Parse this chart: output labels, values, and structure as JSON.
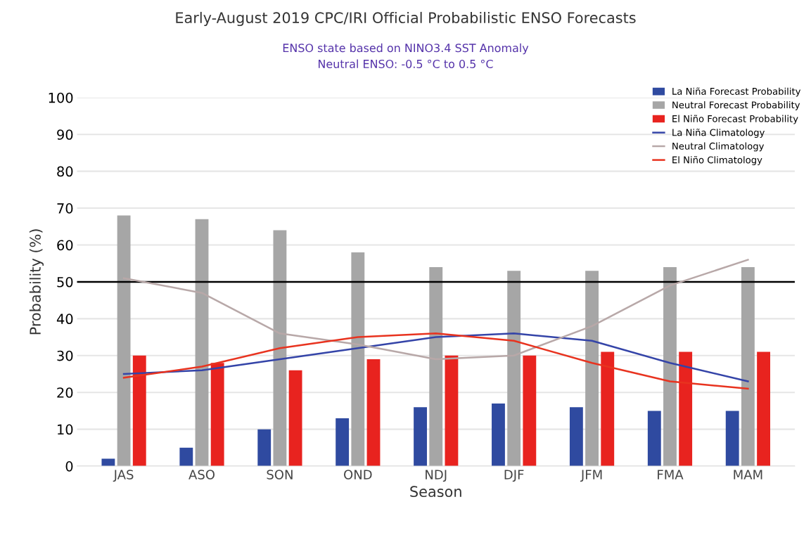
{
  "chart_data": {
    "type": "bar",
    "title": "Early-August 2019 CPC/IRI Official Probabilistic ENSO Forecasts",
    "subtitle": "ENSO state based on NINO3.4 SST Anomaly\nNeutral ENSO: -0.5 °C to 0.5 °C",
    "xlabel": "Season",
    "ylabel": "Probability (%)",
    "categories": [
      "JAS",
      "ASO",
      "SON",
      "OND",
      "NDJ",
      "DJF",
      "JFM",
      "FMA",
      "MAM"
    ],
    "series": [
      {
        "name": "La Niña Forecast Probability",
        "color": "#2f4aa0",
        "values": [
          2,
          5,
          10,
          13,
          16,
          17,
          16,
          15,
          15
        ]
      },
      {
        "name": "Neutral Forecast Probability",
        "color": "#a6a6a6",
        "values": [
          68,
          67,
          64,
          58,
          54,
          53,
          53,
          54,
          54
        ]
      },
      {
        "name": "El Niño Forecast Probability",
        "color": "#e8231f",
        "values": [
          30,
          28,
          26,
          29,
          30,
          30,
          31,
          31,
          31
        ]
      },
      {
        "name": "La Niña Climatology",
        "type": "line",
        "color": "#3444a8",
        "values": [
          25,
          26,
          29,
          32,
          35,
          36,
          34,
          28,
          23
        ]
      },
      {
        "name": "Neutral Climatology",
        "type": "line",
        "color": "#b8a8a8",
        "values": [
          51,
          47,
          36,
          33,
          29,
          30,
          38,
          49,
          56
        ]
      },
      {
        "name": "El Niño Climatology",
        "type": "line",
        "color": "#e8331f",
        "values": [
          24,
          27,
          32,
          35,
          36,
          34,
          28,
          23,
          21
        ]
      }
    ],
    "ylim": [
      0,
      100
    ],
    "yticks": [
      0,
      10,
      20,
      30,
      40,
      50,
      60,
      70,
      80,
      90,
      100
    ],
    "ref_lines": [
      {
        "axis": "y",
        "value": 50,
        "color": "#000000"
      }
    ],
    "grid": "y",
    "legend": "top right"
  }
}
